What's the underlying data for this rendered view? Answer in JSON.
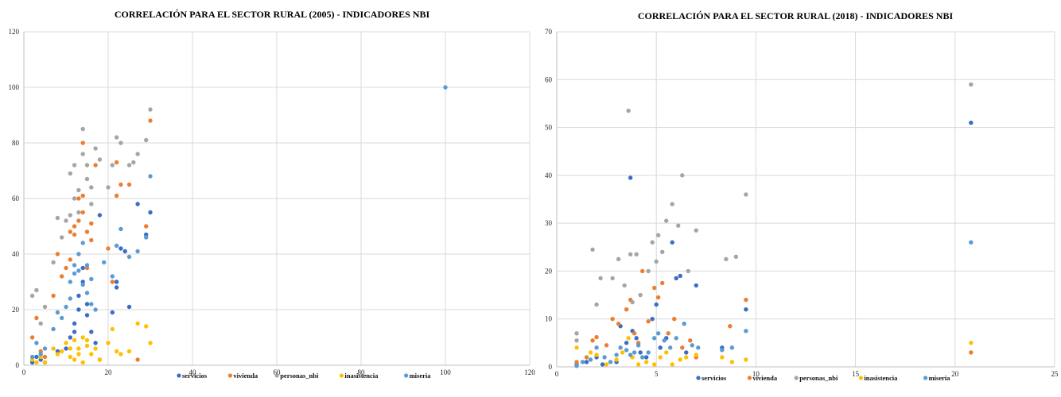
{
  "chart_data": [
    {
      "type": "scatter",
      "title": "CORRELACIÓN PARA EL SECTOR RURAL (2005) - INDICADORES NBI",
      "xlim": [
        0,
        120
      ],
      "ylim": [
        0,
        120
      ],
      "x_ticks": [
        "0",
        "20",
        "40",
        "60",
        "80",
        "100",
        "120"
      ],
      "y_ticks": [
        "0",
        "20",
        "40",
        "60",
        "80",
        "100",
        "120"
      ],
      "grid": "vertical and horizontal",
      "legend_position": "bottom",
      "series": [
        {
          "name": "servicios",
          "color": "#3b6cc6",
          "points": [
            [
              2,
              1
            ],
            [
              3,
              3
            ],
            [
              4,
              2
            ],
            [
              5,
              1
            ],
            [
              8,
              5
            ],
            [
              10,
              6
            ],
            [
              11,
              10
            ],
            [
              12,
              12
            ],
            [
              12,
              15
            ],
            [
              13,
              20
            ],
            [
              13,
              25
            ],
            [
              14,
              30
            ],
            [
              14,
              35
            ],
            [
              15,
              18
            ],
            [
              15,
              22
            ],
            [
              16,
              12
            ],
            [
              17,
              8
            ],
            [
              18,
              54
            ],
            [
              21,
              19
            ],
            [
              22,
              30
            ],
            [
              22,
              28
            ],
            [
              23,
              42
            ],
            [
              24,
              41
            ],
            [
              25,
              21
            ],
            [
              27,
              58
            ],
            [
              29,
              47
            ],
            [
              30,
              55
            ]
          ]
        },
        {
          "name": "vivienda",
          "color": "#ed7d31",
          "points": [
            [
              2,
              10
            ],
            [
              3,
              17
            ],
            [
              4,
              5
            ],
            [
              5,
              3
            ],
            [
              7,
              25
            ],
            [
              8,
              40
            ],
            [
              9,
              32
            ],
            [
              10,
              35
            ],
            [
              11,
              38
            ],
            [
              11,
              48
            ],
            [
              12,
              50
            ],
            [
              12,
              47
            ],
            [
              13,
              52
            ],
            [
              13,
              60
            ],
            [
              14,
              55
            ],
            [
              14,
              80
            ],
            [
              14,
              61
            ],
            [
              15,
              35
            ],
            [
              15,
              48
            ],
            [
              16,
              45
            ],
            [
              16,
              51
            ],
            [
              17,
              72
            ],
            [
              18,
              2
            ],
            [
              20,
              42
            ],
            [
              21,
              30
            ],
            [
              22,
              73
            ],
            [
              22,
              61
            ],
            [
              23,
              65
            ],
            [
              25,
              65
            ],
            [
              27,
              2
            ],
            [
              29,
              50
            ],
            [
              30,
              88
            ]
          ]
        },
        {
          "name": "personas_nbi",
          "color": "#a5a5a5",
          "points": [
            [
              2,
              25
            ],
            [
              3,
              27
            ],
            [
              4,
              15
            ],
            [
              5,
              21
            ],
            [
              7,
              37
            ],
            [
              8,
              53
            ],
            [
              9,
              46
            ],
            [
              10,
              52
            ],
            [
              11,
              54
            ],
            [
              11,
              69
            ],
            [
              12,
              60
            ],
            [
              12,
              72
            ],
            [
              13,
              63
            ],
            [
              13,
              55
            ],
            [
              14,
              85
            ],
            [
              14,
              76
            ],
            [
              15,
              67
            ],
            [
              15,
              72
            ],
            [
              16,
              64
            ],
            [
              16,
              58
            ],
            [
              17,
              78
            ],
            [
              18,
              74
            ],
            [
              20,
              64
            ],
            [
              21,
              72
            ],
            [
              22,
              82
            ],
            [
              23,
              80
            ],
            [
              25,
              72
            ],
            [
              26,
              73
            ],
            [
              27,
              76
            ],
            [
              29,
              81
            ],
            [
              30,
              92
            ]
          ]
        },
        {
          "name": "inasistencia",
          "color": "#ffc000",
          "points": [
            [
              2,
              2
            ],
            [
              3,
              1
            ],
            [
              4,
              3
            ],
            [
              5,
              1
            ],
            [
              7,
              6
            ],
            [
              8,
              4
            ],
            [
              9,
              5
            ],
            [
              10,
              8
            ],
            [
              11,
              6
            ],
            [
              11,
              3
            ],
            [
              12,
              9
            ],
            [
              12,
              2
            ],
            [
              13,
              6
            ],
            [
              13,
              4
            ],
            [
              14,
              10
            ],
            [
              14,
              1
            ],
            [
              15,
              7
            ],
            [
              15,
              9
            ],
            [
              16,
              4
            ],
            [
              17,
              6
            ],
            [
              18,
              2
            ],
            [
              20,
              8
            ],
            [
              21,
              13
            ],
            [
              22,
              5
            ],
            [
              23,
              4
            ],
            [
              25,
              5
            ],
            [
              27,
              15
            ],
            [
              29,
              14
            ],
            [
              30,
              8
            ]
          ]
        },
        {
          "name": "miseria",
          "color": "#5b9bd5",
          "points": [
            [
              2,
              3
            ],
            [
              3,
              8
            ],
            [
              4,
              4
            ],
            [
              5,
              6
            ],
            [
              7,
              13
            ],
            [
              8,
              19
            ],
            [
              9,
              17
            ],
            [
              10,
              21
            ],
            [
              11,
              24
            ],
            [
              11,
              30
            ],
            [
              12,
              33
            ],
            [
              12,
              36
            ],
            [
              13,
              34
            ],
            [
              13,
              40
            ],
            [
              14,
              44
            ],
            [
              14,
              29
            ],
            [
              15,
              26
            ],
            [
              15,
              36
            ],
            [
              16,
              22
            ],
            [
              16,
              31
            ],
            [
              17,
              20
            ],
            [
              19,
              37
            ],
            [
              21,
              32
            ],
            [
              22,
              43
            ],
            [
              23,
              49
            ],
            [
              25,
              39
            ],
            [
              27,
              41
            ],
            [
              29,
              46
            ],
            [
              30,
              68
            ],
            [
              100,
              100
            ]
          ]
        }
      ]
    },
    {
      "type": "scatter",
      "title": "CORRELACIÓN PARA EL SECTOR RURAL (2018) - INDICADORES NBI",
      "xlim": [
        0,
        25
      ],
      "ylim": [
        0,
        70
      ],
      "x_ticks": [
        "0",
        "5",
        "10",
        "15",
        "20",
        "25"
      ],
      "y_ticks": [
        "0",
        "10",
        "20",
        "30",
        "40",
        "50",
        "60",
        "70"
      ],
      "grid": "vertical and horizontal",
      "legend_position": "bottom",
      "series": [
        {
          "name": "servicios",
          "color": "#3b6cc6",
          "points": [
            [
              1,
              0.5
            ],
            [
              1.5,
              1
            ],
            [
              2,
              2
            ],
            [
              2.3,
              0.5
            ],
            [
              3,
              1
            ],
            [
              3.2,
              8.5
            ],
            [
              3.5,
              5
            ],
            [
              3.7,
              39.5
            ],
            [
              3.8,
              7.5
            ],
            [
              4,
              6
            ],
            [
              4.2,
              3
            ],
            [
              4.5,
              2
            ],
            [
              4.8,
              10
            ],
            [
              5,
              13
            ],
            [
              5.2,
              4
            ],
            [
              5.5,
              6
            ],
            [
              5.8,
              26
            ],
            [
              6,
              18.5
            ],
            [
              6.2,
              19
            ],
            [
              6.5,
              3
            ],
            [
              7,
              17
            ],
            [
              8.3,
              4
            ],
            [
              9.5,
              12
            ],
            [
              20.8,
              51
            ]
          ]
        },
        {
          "name": "vivienda",
          "color": "#ed7d31",
          "points": [
            [
              1,
              1
            ],
            [
              1.5,
              2
            ],
            [
              1.8,
              5.5
            ],
            [
              2,
              6.2
            ],
            [
              2.5,
              4.5
            ],
            [
              2.8,
              10
            ],
            [
              3.1,
              9
            ],
            [
              3.5,
              12
            ],
            [
              3.7,
              14
            ],
            [
              3.9,
              7
            ],
            [
              4.1,
              5
            ],
            [
              4.3,
              20
            ],
            [
              4.6,
              9.5
            ],
            [
              4.9,
              16.5
            ],
            [
              5.1,
              14.5
            ],
            [
              5.3,
              17.5
            ],
            [
              5.6,
              7
            ],
            [
              5.9,
              10
            ],
            [
              6.3,
              4
            ],
            [
              6.7,
              5.5
            ],
            [
              7,
              2
            ],
            [
              8.7,
              8.5
            ],
            [
              9.5,
              14
            ],
            [
              20.8,
              3
            ]
          ]
        },
        {
          "name": "personas_nbi",
          "color": "#a5a5a5",
          "points": [
            [
              1,
              5.5
            ],
            [
              1,
              7
            ],
            [
              1.8,
              24.5
            ],
            [
              2,
              13
            ],
            [
              2.2,
              18.5
            ],
            [
              2.8,
              18.5
            ],
            [
              3.1,
              22.5
            ],
            [
              3.4,
              17
            ],
            [
              3.6,
              53.5
            ],
            [
              3.7,
              23.5
            ],
            [
              3.8,
              13.5
            ],
            [
              4,
              23.5
            ],
            [
              4.2,
              15
            ],
            [
              4.6,
              20
            ],
            [
              4.8,
              26
            ],
            [
              5,
              22
            ],
            [
              5.1,
              27.5
            ],
            [
              5.3,
              24
            ],
            [
              5.5,
              30.5
            ],
            [
              5.8,
              34
            ],
            [
              6.1,
              29.5
            ],
            [
              6.3,
              40
            ],
            [
              6.6,
              20
            ],
            [
              7,
              28.5
            ],
            [
              8.5,
              22.5
            ],
            [
              9,
              23
            ],
            [
              9.5,
              36
            ],
            [
              20.8,
              59
            ]
          ]
        },
        {
          "name": "inasistencia",
          "color": "#ffc000",
          "points": [
            [
              1,
              4
            ],
            [
              1.3,
              1
            ],
            [
              1.7,
              3
            ],
            [
              2,
              2.5
            ],
            [
              2.5,
              0.5
            ],
            [
              3,
              1.5
            ],
            [
              3.3,
              3
            ],
            [
              3.6,
              6
            ],
            [
              3.8,
              2
            ],
            [
              4.1,
              0.5
            ],
            [
              4.5,
              1
            ],
            [
              4.9,
              0.5
            ],
            [
              5.2,
              2
            ],
            [
              5.5,
              3
            ],
            [
              5.8,
              0.5
            ],
            [
              6.2,
              1.5
            ],
            [
              6.5,
              2
            ],
            [
              7,
              2.5
            ],
            [
              8.3,
              2
            ],
            [
              8.8,
              1
            ],
            [
              9.5,
              1.5
            ],
            [
              20.8,
              5
            ]
          ]
        },
        {
          "name": "miseria",
          "color": "#5b9bd5",
          "points": [
            [
              1,
              0.2
            ],
            [
              1.3,
              1
            ],
            [
              1.7,
              1.5
            ],
            [
              2,
              4
            ],
            [
              2.4,
              2
            ],
            [
              2.7,
              1
            ],
            [
              3,
              2.5
            ],
            [
              3.2,
              4
            ],
            [
              3.5,
              3.5
            ],
            [
              3.7,
              2.5
            ],
            [
              3.9,
              3
            ],
            [
              4.1,
              4.5
            ],
            [
              4.3,
              2
            ],
            [
              4.6,
              3
            ],
            [
              4.9,
              6
            ],
            [
              5.1,
              7
            ],
            [
              5.4,
              5.5
            ],
            [
              5.7,
              4
            ],
            [
              6,
              6
            ],
            [
              6.4,
              9
            ],
            [
              6.8,
              4.5
            ],
            [
              7.1,
              4
            ],
            [
              8.3,
              3.5
            ],
            [
              8.8,
              4
            ],
            [
              9.5,
              7.5
            ],
            [
              20.8,
              26
            ]
          ]
        }
      ]
    }
  ]
}
